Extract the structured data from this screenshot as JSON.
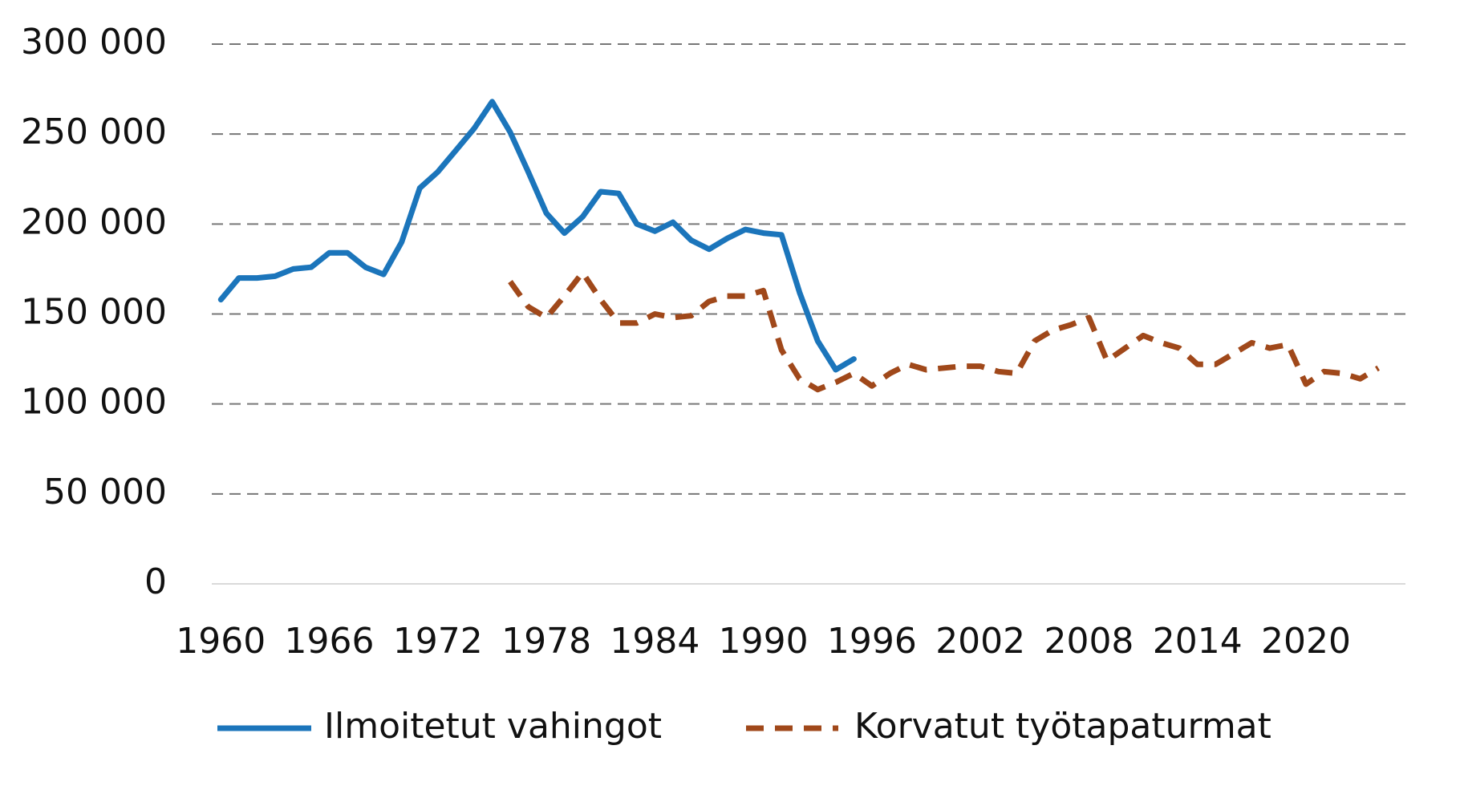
{
  "chart_data": {
    "type": "line",
    "x": [
      1960,
      1961,
      1962,
      1963,
      1964,
      1965,
      1966,
      1967,
      1968,
      1969,
      1970,
      1971,
      1972,
      1973,
      1974,
      1975,
      1976,
      1977,
      1978,
      1979,
      1980,
      1981,
      1982,
      1983,
      1984,
      1985,
      1986,
      1987,
      1988,
      1989,
      1990,
      1991,
      1992,
      1993,
      1994,
      1995,
      1996,
      1997,
      1998,
      1999,
      2000,
      2001,
      2002,
      2003,
      2004,
      2005,
      2006,
      2007,
      2008,
      2009,
      2010,
      2011,
      2012,
      2013,
      2014,
      2015,
      2016,
      2017,
      2018,
      2019,
      2020,
      2021,
      2022,
      2023,
      2024
    ],
    "series": [
      {
        "name": "Ilmoitetut vahingot",
        "color": "#1b75bb",
        "dashed": false,
        "values": [
          158000,
          170000,
          170000,
          171000,
          175000,
          176000,
          184000,
          184000,
          176000,
          172000,
          190000,
          220000,
          229000,
          241000,
          253000,
          268000,
          251000,
          229000,
          206000,
          195000,
          204000,
          218000,
          217000,
          200000,
          196000,
          201000,
          191000,
          186000,
          192000,
          197000,
          195000,
          194000,
          162000,
          135000,
          119000,
          125000,
          null,
          null,
          null,
          null,
          null,
          null,
          null,
          null,
          null,
          null,
          null,
          null,
          null,
          null,
          null,
          null,
          null,
          null,
          null,
          null,
          null,
          null,
          null,
          null,
          null,
          null,
          null,
          null,
          null
        ]
      },
      {
        "name": "Korvatut työtapaturmat",
        "color": "#a0481a",
        "dashed": true,
        "values": [
          null,
          null,
          null,
          null,
          null,
          null,
          null,
          null,
          null,
          null,
          null,
          null,
          null,
          null,
          null,
          null,
          168000,
          154000,
          148000,
          160000,
          173000,
          158000,
          145000,
          145000,
          150000,
          148000,
          149000,
          157000,
          160000,
          160000,
          163000,
          130000,
          114000,
          108000,
          112000,
          117000,
          110000,
          117000,
          122000,
          119000,
          120000,
          121000,
          121000,
          118000,
          117000,
          135000,
          141000,
          144000,
          148000,
          124000,
          131000,
          138000,
          134000,
          131000,
          122000,
          122000,
          128000,
          134000,
          131000,
          133000,
          111000,
          118000,
          117000,
          114000,
          120000
        ]
      }
    ],
    "xlim": [
      1959.5,
      2025.5
    ],
    "xticks": [
      1960,
      1966,
      1972,
      1978,
      1984,
      1990,
      1996,
      2002,
      2008,
      2014,
      2020
    ],
    "ylim": [
      0,
      300000
    ],
    "yticks": [
      0,
      {
        "value": 50000,
        "label": "50 000"
      },
      {
        "value": 100000,
        "label": "100 000"
      },
      {
        "value": 150000,
        "label": "150 000"
      },
      {
        "value": 200000,
        "label": "200 000"
      },
      {
        "value": 250000,
        "label": "250 000"
      },
      {
        "value": 300000,
        "label": "300 000"
      }
    ],
    "grid": true,
    "legend": "bottom"
  }
}
